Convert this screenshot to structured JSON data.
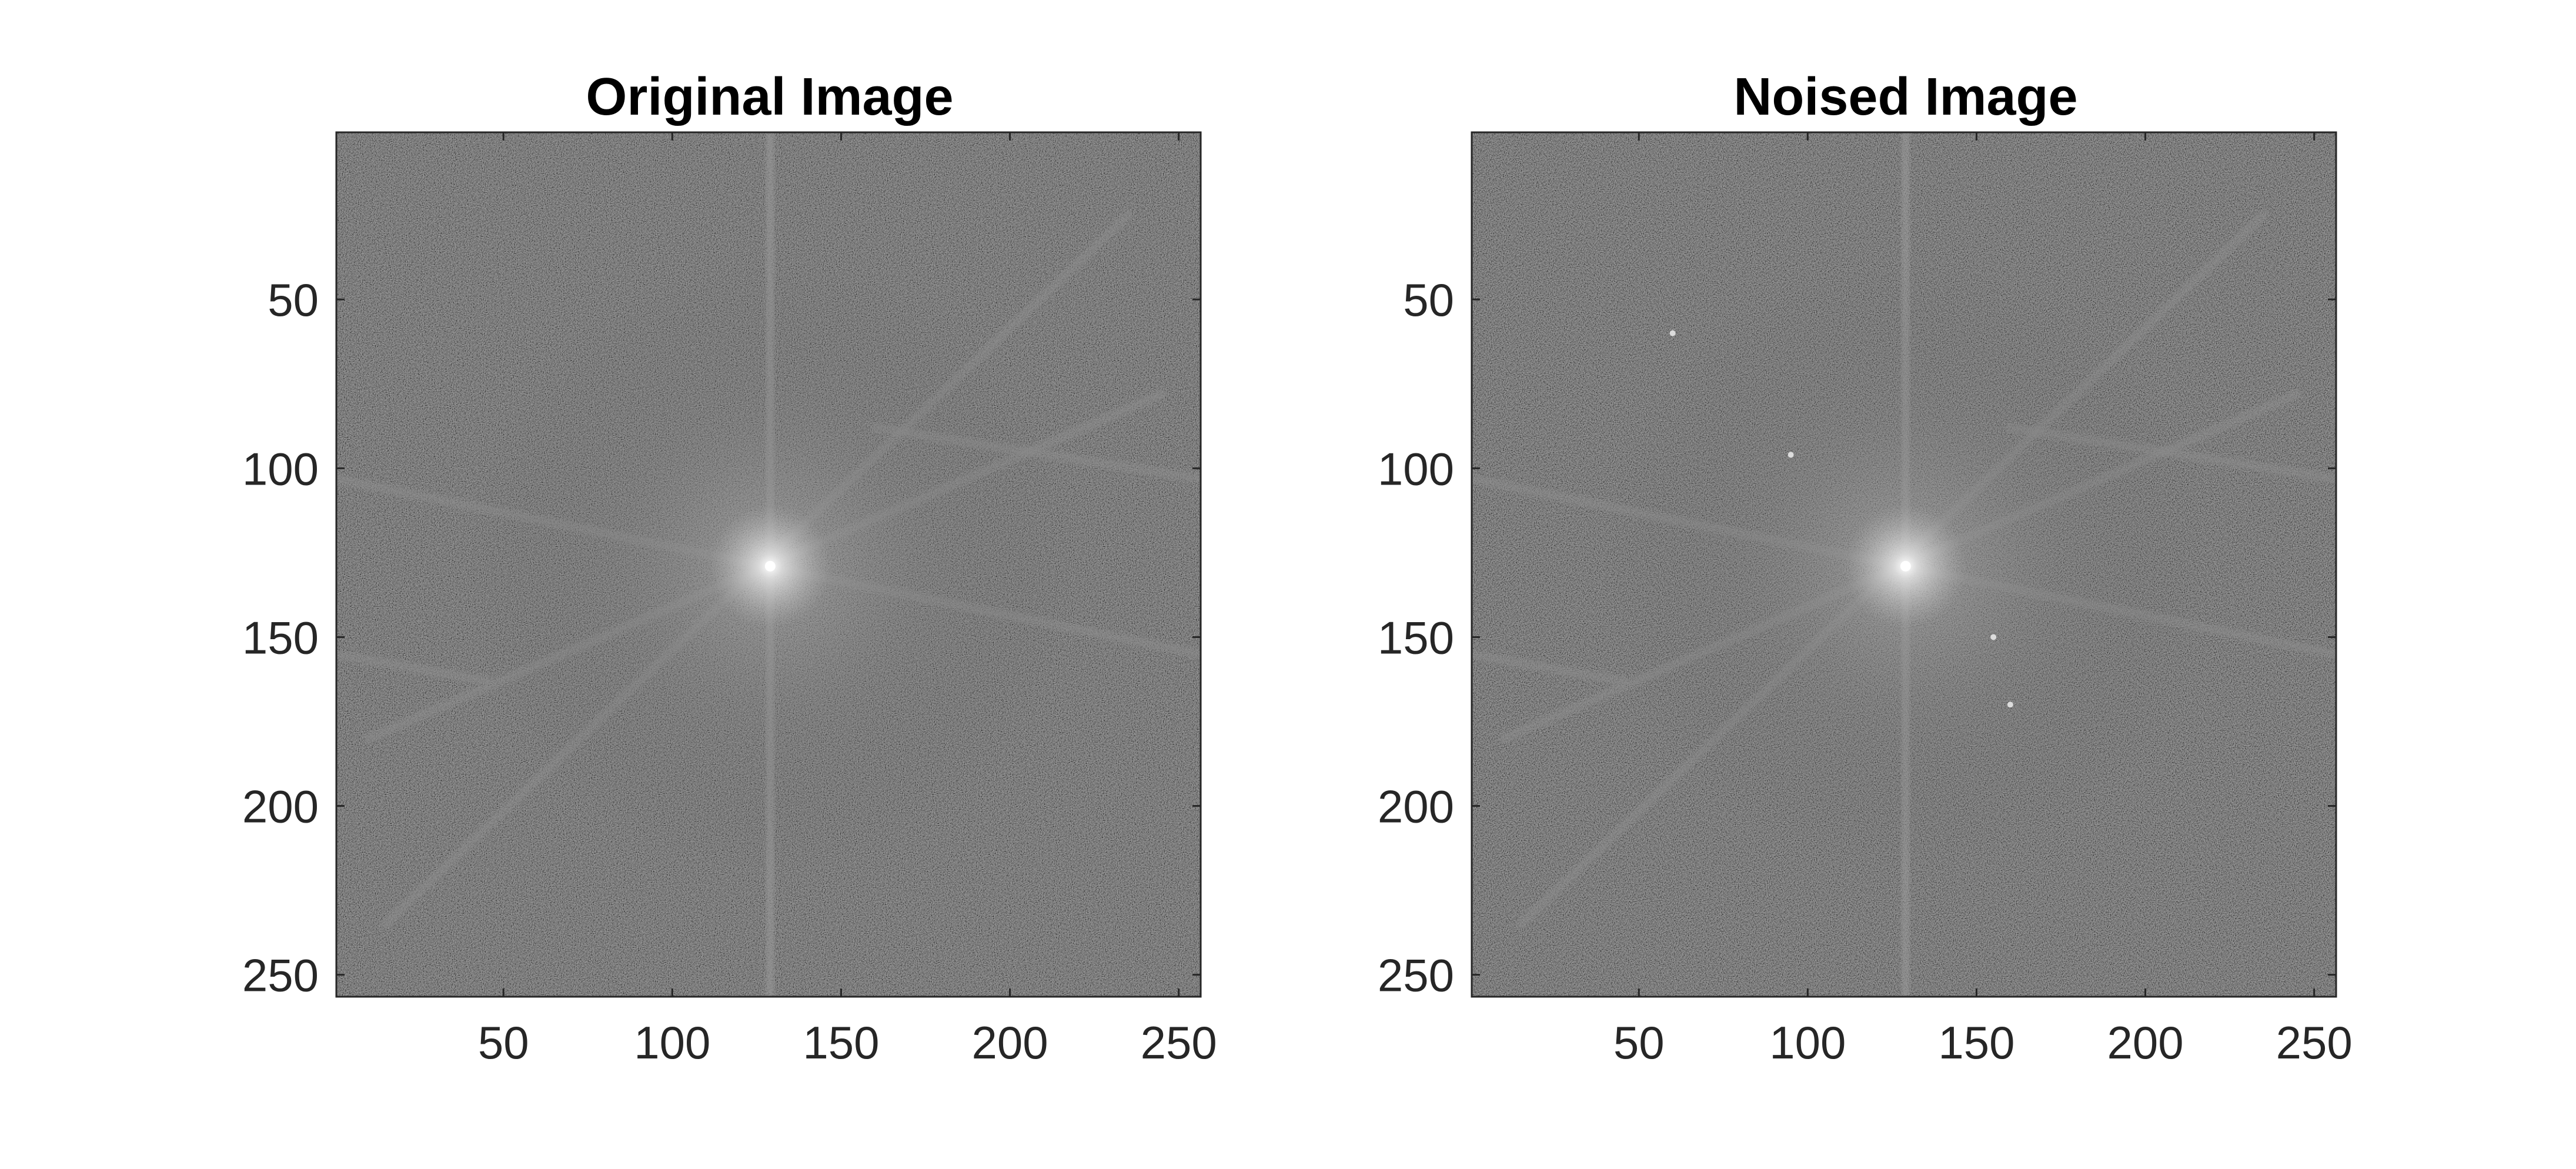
{
  "figure": {
    "background": "#ffffff"
  },
  "chart_data": [
    {
      "type": "heatmap",
      "title": "Original Image",
      "description_values": "log-magnitude centered 2D Fourier spectrum, 256x256 pixels",
      "x_ticks": [
        50,
        100,
        150,
        200,
        250
      ],
      "y_ticks": [
        50,
        100,
        150,
        200,
        250
      ],
      "xlim": [
        0.5,
        256.5
      ],
      "ylim": [
        0.5,
        256.5
      ],
      "y_direction": "reverse",
      "colormap": "gray",
      "center": [
        129,
        129
      ],
      "grid": false,
      "streaks": [
        {
          "from": [
            0,
            103
          ],
          "to": [
            256,
            155
          ]
        },
        {
          "from": [
            0,
            155
          ],
          "to": [
            45,
            163
          ]
        },
        {
          "from": [
            10,
            180
          ],
          "to": [
            245,
            78
          ]
        },
        {
          "from": [
            15,
            235
          ],
          "to": [
            235,
            25
          ]
        },
        {
          "from": [
            160,
            88
          ],
          "to": [
            256,
            103
          ]
        },
        {
          "from": [
            0,
            129
          ],
          "to": [
            256,
            129
          ]
        }
      ]
    },
    {
      "type": "heatmap",
      "title": "Noised Image",
      "description_values": "log-magnitude centered 2D Fourier spectrum, 256x256 pixels",
      "x_ticks": [
        50,
        100,
        150,
        200,
        250
      ],
      "y_ticks": [
        50,
        100,
        150,
        200,
        250
      ],
      "xlim": [
        0.5,
        256.5
      ],
      "ylim": [
        0.5,
        256.5
      ],
      "y_direction": "reverse",
      "colormap": "gray",
      "center": [
        129,
        129
      ],
      "grid": false,
      "streaks": [
        {
          "from": [
            0,
            103
          ],
          "to": [
            256,
            155
          ]
        },
        {
          "from": [
            0,
            155
          ],
          "to": [
            45,
            163
          ]
        },
        {
          "from": [
            10,
            180
          ],
          "to": [
            245,
            78
          ]
        },
        {
          "from": [
            15,
            235
          ],
          "to": [
            235,
            25
          ]
        },
        {
          "from": [
            160,
            88
          ],
          "to": [
            256,
            103
          ]
        },
        {
          "from": [
            0,
            129
          ],
          "to": [
            256,
            129
          ]
        }
      ],
      "noise_peaks": [
        [
          95,
          96
        ],
        [
          155,
          150
        ],
        [
          160,
          170
        ],
        [
          60,
          60
        ]
      ]
    }
  ]
}
